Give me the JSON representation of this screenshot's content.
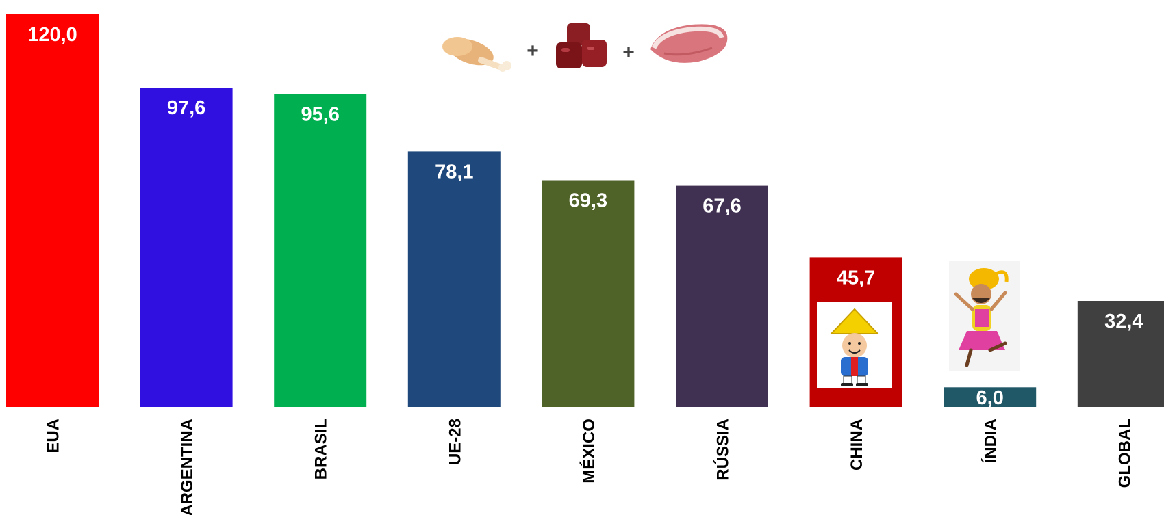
{
  "chart_data": {
    "type": "bar",
    "title": "",
    "xlabel": "",
    "ylabel": "",
    "ylim": [
      0,
      122.7
    ],
    "grid": false,
    "legend": "none",
    "categories": [
      "EUA",
      "ARGENTINA",
      "BRASIL",
      "UE-28",
      "MÉXICO",
      "RÚSSIA",
      "CHINA",
      "ÍNDIA",
      "GLOBAL"
    ],
    "values": [
      120.0,
      97.6,
      95.6,
      78.1,
      69.3,
      67.6,
      45.7,
      6.0,
      32.4
    ],
    "value_labels": [
      "120,0",
      "97,6",
      "95,6",
      "78,1",
      "69,3",
      "67,6",
      "45,7",
      "6,0",
      "32,4"
    ],
    "colors": [
      "#ff0000",
      "#3010e0",
      "#00b050",
      "#1f497d",
      "#4f6228",
      "#403152",
      "#c00000",
      "#215868",
      "#404040"
    ],
    "decorations": {
      "header_images": [
        "chicken-leg-icon",
        "beef-cubes-icon",
        "pork-steak-icon"
      ],
      "plus_signs": [
        "+",
        "+"
      ],
      "china_image": "chinese-man-illustration",
      "india_image": "indian-dancer-illustration"
    }
  }
}
